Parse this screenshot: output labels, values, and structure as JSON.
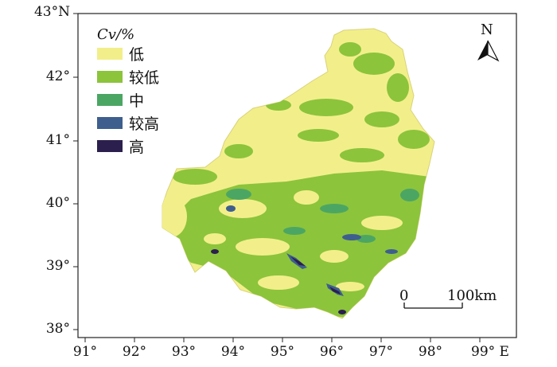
{
  "frame": {
    "lat_ticks": [
      "43°N",
      "42°",
      "41°",
      "40°",
      "39°",
      "38°"
    ],
    "lon_ticks": [
      "91°",
      "92°",
      "93°",
      "94°",
      "95°",
      "96°",
      "97°",
      "98°",
      "99° E"
    ]
  },
  "legend": {
    "title": "Cv/%",
    "items": [
      {
        "label": "低",
        "color": "#f2ef8a"
      },
      {
        "label": "较低",
        "color": "#8cc43c"
      },
      {
        "label": "中",
        "color": "#4ca663"
      },
      {
        "label": "较高",
        "color": "#3e5f8e"
      },
      {
        "label": "高",
        "color": "#2b1f4e"
      }
    ]
  },
  "north_arrow": {
    "label": "N",
    "icon": "north-arrow-icon"
  },
  "scale_bar": {
    "start_label": "0",
    "end_label": "100km"
  }
}
